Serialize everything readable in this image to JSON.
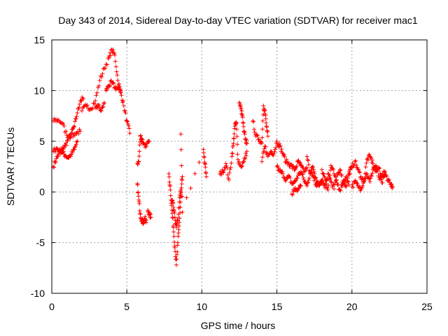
{
  "chart_data": {
    "type": "scatter",
    "title": "Day 343 of 2014, Sidereal Day-to-day VTEC variation (SDTVAR) for receiver mac1",
    "xlabel": "GPS time / hours",
    "ylabel": "SDTVAR / TECUs",
    "xlim": [
      0,
      25
    ],
    "ylim": [
      -10,
      15
    ],
    "xticks": [
      "0",
      "5",
      "10",
      "15",
      "20",
      "25"
    ],
    "yticks": [
      "-10",
      "-5",
      "0",
      "5",
      "10",
      "15"
    ],
    "grid": true,
    "marker": "+",
    "color": "#ff0000",
    "series": [
      {
        "name": "SDTVAR",
        "segments": [
          {
            "x": [
              0.1,
              0.3,
              0.5,
              0.7,
              0.9,
              1.1,
              1.3,
              1.5,
              1.7,
              1.9,
              2.1
            ],
            "y": [
              2.5,
              3.3,
              3.8,
              4.2,
              4.6,
              5.2,
              5.8,
              6.5,
              7.8,
              9.0,
              9.2
            ]
          },
          {
            "x": [
              0.1,
              0.3,
              0.5,
              0.7,
              0.9,
              1.1,
              1.3,
              1.5,
              1.7
            ],
            "y": [
              4.0,
              4.3,
              4.1,
              3.9,
              3.6,
              3.4,
              3.7,
              4.2,
              5.0
            ]
          },
          {
            "x": [
              0.1,
              0.4,
              0.7,
              1.0,
              1.3,
              1.6,
              1.9
            ],
            "y": [
              7.0,
              7.1,
              6.8,
              5.6,
              5.5,
              5.8,
              6.0
            ]
          },
          {
            "x": [
              2.0,
              2.3,
              2.6,
              2.9,
              3.2,
              3.5,
              3.8,
              4.0,
              4.2,
              4.4,
              4.6,
              4.8,
              5.0,
              5.2
            ],
            "y": [
              8.0,
              8.5,
              8.2,
              9.0,
              11.0,
              12.2,
              13.2,
              14.0,
              13.5,
              11.0,
              9.8,
              8.5,
              7.0,
              5.8
            ]
          },
          {
            "x": [
              2.9,
              3.1,
              3.3,
              3.5
            ],
            "y": [
              8.3,
              8.5,
              8.0,
              8.8
            ]
          },
          {
            "x": [
              3.6,
              3.8,
              4.0,
              4.2,
              4.4,
              4.6
            ],
            "y": [
              10.0,
              10.5,
              10.8,
              10.3,
              10.2,
              10.0
            ]
          },
          {
            "x": [
              5.7,
              5.8,
              5.9,
              6.0,
              6.1,
              6.3,
              6.5
            ],
            "y": [
              2.8,
              3.0,
              5.5,
              5.2,
              4.8,
              4.5,
              5.0
            ]
          },
          {
            "x": [
              5.7,
              5.8,
              5.9,
              6.0,
              6.1,
              6.2,
              6.3
            ],
            "y": [
              0.8,
              -0.8,
              -2.2,
              -2.8,
              -3.0,
              -2.6,
              -3.0
            ]
          },
          {
            "x": [
              6.4,
              6.5,
              6.6
            ],
            "y": [
              -1.8,
              -2.2,
              -2.5
            ]
          },
          {
            "x": [
              7.8,
              7.9,
              8.0,
              8.1,
              8.2,
              8.3,
              8.4,
              8.5,
              8.6,
              8.7
            ],
            "y": [
              1.8,
              0.2,
              -1.8,
              -3.5,
              -5.5,
              -7.2,
              -5.0,
              -3.0,
              -0.5,
              1.5
            ]
          },
          {
            "x": [
              8.0,
              8.1,
              8.2,
              8.3,
              8.4,
              8.5,
              8.6
            ],
            "y": [
              -0.8,
              -1.5,
              -2.5,
              -3.5,
              -2.8,
              -1.0,
              0.2
            ]
          },
          {
            "x": [
              8.6,
              8.7,
              10.1,
              10.2,
              10.3
            ],
            "y": [
              5.7,
              -2.0,
              4.2,
              2.8,
              1.5
            ]
          },
          {
            "x": [
              11.2,
              11.4,
              11.6,
              11.8,
              12.0,
              12.1,
              12.2,
              12.3,
              12.4,
              12.6,
              12.8,
              13.0
            ],
            "y": [
              1.8,
              2.0,
              2.8,
              1.2,
              3.5,
              4.8,
              6.5,
              6.8,
              3.2,
              2.5,
              3.0,
              4.0
            ]
          },
          {
            "x": [
              12.5,
              12.6,
              12.7,
              12.8,
              12.9,
              13.0
            ],
            "y": [
              8.8,
              8.2,
              7.5,
              6.0,
              5.2,
              4.8
            ]
          },
          {
            "x": [
              13.4,
              13.6,
              13.8,
              14.0,
              14.1,
              14.2,
              14.3,
              14.4
            ],
            "y": [
              7.0,
              5.5,
              5.2,
              4.8,
              8.5,
              8.0,
              6.5,
              5.5
            ]
          },
          {
            "x": [
              14.0,
              14.2,
              14.4,
              14.6,
              14.8,
              15.0,
              15.2,
              15.4,
              15.6,
              15.8,
              16.0,
              16.2,
              16.4,
              16.6,
              16.8,
              17.0
            ],
            "y": [
              3.0,
              4.5,
              3.5,
              4.0,
              3.8,
              5.0,
              4.5,
              3.8,
              3.0,
              2.8,
              2.5,
              2.2,
              3.0,
              2.6,
              2.0,
              2.4
            ]
          },
          {
            "x": [
              15.0,
              15.2,
              15.4,
              15.6,
              15.8,
              16.0,
              16.2,
              16.4,
              16.6,
              16.8,
              17.0,
              17.2,
              17.4,
              17.6,
              17.8,
              18.0
            ],
            "y": [
              2.5,
              2.0,
              1.8,
              1.2,
              1.5,
              0.8,
              1.0,
              1.6,
              2.0,
              1.2,
              0.6,
              1.8,
              2.5,
              1.4,
              0.8,
              1.0
            ]
          },
          {
            "x": [
              16.0,
              16.2,
              16.4,
              16.6
            ],
            "y": [
              -0.2,
              0.4,
              0.2,
              0.6
            ]
          },
          {
            "x": [
              17.0,
              17.2,
              17.4,
              17.6,
              17.8,
              18.0,
              18.2,
              18.4,
              18.6,
              18.8,
              19.0,
              19.2,
              19.4,
              19.6,
              19.8,
              20.0
            ],
            "y": [
              3.5,
              2.0,
              1.5,
              0.8,
              0.6,
              1.2,
              0.4,
              1.8,
              1.0,
              0.3,
              1.6,
              2.2,
              0.8,
              0.5,
              2.0,
              2.4
            ]
          },
          {
            "x": [
              18.0,
              18.2,
              18.4,
              18.6,
              18.8,
              19.0,
              19.2,
              19.4,
              19.6,
              19.8
            ],
            "y": [
              2.2,
              1.4,
              0.2,
              2.6,
              1.8,
              0.9,
              0.2,
              1.0,
              1.5,
              0.7
            ]
          },
          {
            "x": [
              19.8,
              20.0,
              20.2,
              20.4,
              20.6,
              20.8,
              21.0,
              21.2,
              21.4,
              21.6,
              21.8,
              22.0,
              22.2,
              22.4,
              22.6,
              22.7
            ],
            "y": [
              1.8,
              2.5,
              3.0,
              2.2,
              1.5,
              1.0,
              3.2,
              3.5,
              2.8,
              2.0,
              2.4,
              1.5,
              2.0,
              1.2,
              0.8,
              0.5
            ]
          },
          {
            "x": [
              20.0,
              20.2,
              20.4,
              20.6,
              20.8,
              21.0,
              21.2,
              21.4,
              21.6,
              21.8,
              22.0,
              22.2
            ],
            "y": [
              0.5,
              1.0,
              0.6,
              0.3,
              1.2,
              1.8,
              1.0,
              2.2,
              2.6,
              1.4,
              0.9,
              1.6
            ]
          }
        ]
      }
    ]
  }
}
